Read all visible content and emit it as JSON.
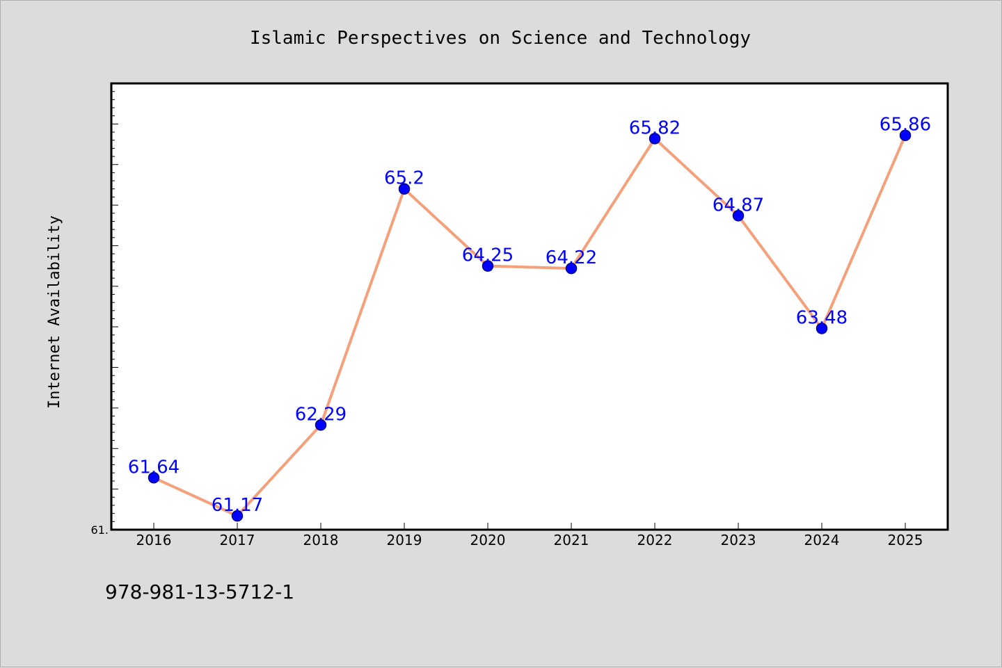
{
  "chart_data": {
    "type": "line",
    "title": "Islamic Perspectives on Science and Technology",
    "xlabel": "",
    "ylabel": "Internet Availability",
    "x": [
      "2016",
      "2017",
      "2018",
      "2019",
      "2020",
      "2021",
      "2022",
      "2023",
      "2024",
      "2025"
    ],
    "series": [
      {
        "values": [
          61.64,
          61.17,
          62.29,
          65.2,
          64.25,
          64.22,
          65.82,
          64.87,
          63.48,
          65.86
        ],
        "labels": [
          "61.64",
          "61.17",
          "62.29",
          "65.2",
          "64.25",
          "64.22",
          "65.82",
          "64.87",
          "63.48",
          "65.86"
        ]
      }
    ],
    "ylim": [
      61.0,
      66.5
    ],
    "y_tick_labels": [
      "61."
    ],
    "grid": false,
    "legend": "none",
    "colors": {
      "line": "#f4a07a",
      "marker": "#0000ff",
      "marker_edge": "#000080",
      "data_label": "#0000ff",
      "background": "#dcdcdc",
      "plot_background": "#ffffff"
    }
  },
  "footer": {
    "isbn": "978-981-13-5712-1"
  }
}
